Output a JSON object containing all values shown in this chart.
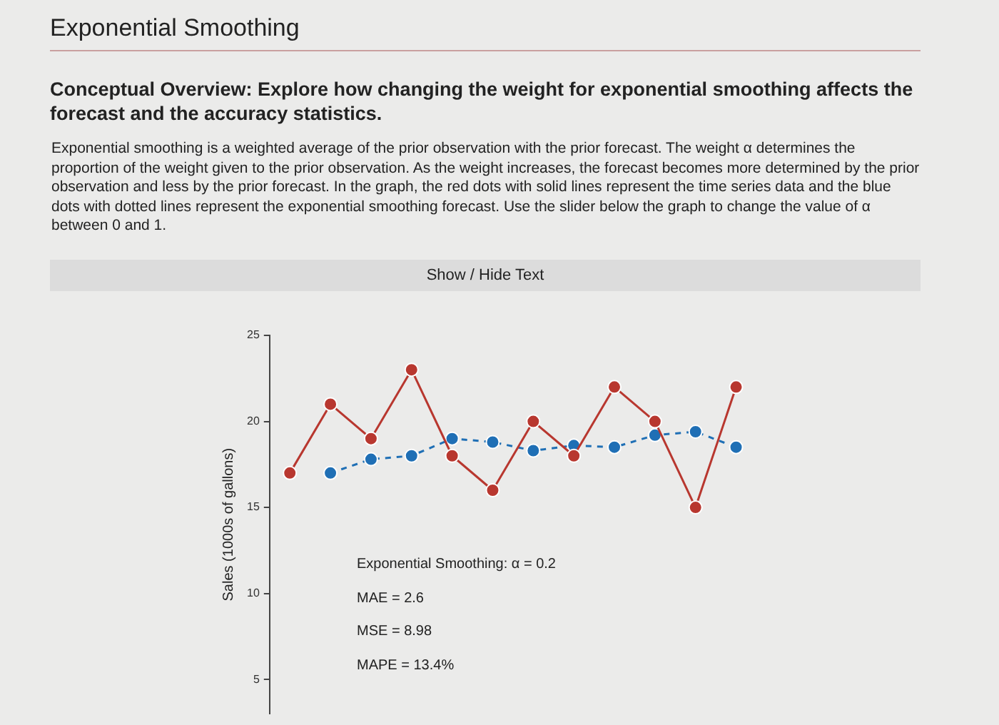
{
  "chart_data": {
    "type": "line",
    "title": "Exponential Smoothing",
    "subtitle": "Conceptual Overview: Explore how changing the weight for exponential smoothing affects the forecast and the accuracy statistics.",
    "annotations": [
      "Exponential smoothing is a weighted average of the prior observation with the prior forecast. The weight α determines the proportion of the weight given to the prior observation. As the weight increases, the forecast becomes more determined by the prior observation and less by the prior forecast. In the graph, the red dots with solid lines represent the time series data and the blue dots with dotted lines represent the exponential smoothing forecast. Use the slider below the graph to change the value of α between 0 and 1.",
      "Show / Hide Text",
      "Exponential Smoothing: α = 0.2",
      "MAE = 2.6",
      "MSE = 8.98",
      "MAPE = 13.4%"
    ],
    "ylabel": "Sales (1000s of gallons)",
    "categories": [
      null,
      null,
      null,
      null,
      null,
      null,
      null,
      null,
      null,
      null,
      null,
      null
    ],
    "series": [
      {
        "color": "#b8372f",
        "line_style": "solid",
        "values": [
          17,
          21,
          19,
          23,
          18,
          16,
          20,
          18,
          22,
          20,
          15,
          22
        ]
      },
      {
        "color": "#1f6fb5",
        "line_style": "dashed",
        "values": [
          null,
          17,
          17.8,
          18.0,
          19.0,
          18.8,
          18.3,
          18.6,
          18.5,
          19.2,
          19.4,
          18.5
        ]
      }
    ],
    "ylim": [
      3,
      25
    ],
    "yticks": [
      5,
      10,
      15,
      20,
      25
    ],
    "grid": false,
    "legend": false,
    "marker": "circle",
    "tick_labels": "y"
  }
}
